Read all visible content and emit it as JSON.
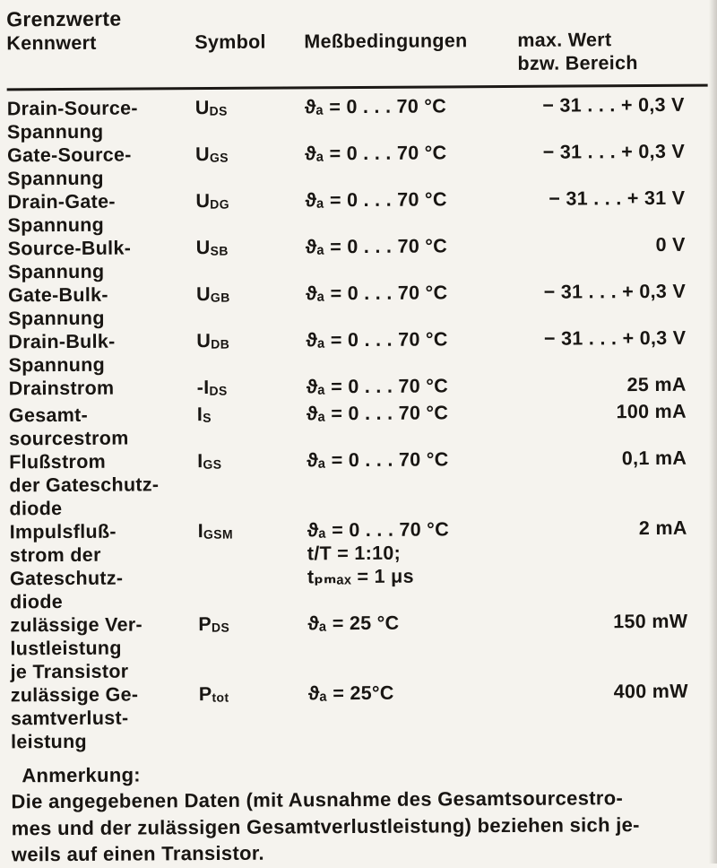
{
  "colors": {
    "paper": "#f5f3ee",
    "ink": "#181512"
  },
  "page": {
    "title": "Grenzwerte",
    "columns": {
      "kennwert": "Kennwert",
      "symbol": "Symbol",
      "bedingungen": "Meßbedingungen",
      "wert_line1": "max. Wert",
      "wert_line2": "bzw. Bereich"
    }
  },
  "rows": [
    {
      "kennwert": [
        "Drain-Source-",
        "Spannung"
      ],
      "sym": {
        "prefix": "",
        "base": "U",
        "sub": "DS"
      },
      "cond": [
        "ϑₐ = 0 . . . 70 °C"
      ],
      "value": "− 31 . . . + 0,3 V"
    },
    {
      "kennwert": [
        "Gate-Source-",
        "Spannung"
      ],
      "sym": {
        "prefix": "",
        "base": "U",
        "sub": "GS"
      },
      "cond": [
        "ϑₐ = 0 . . . 70 °C"
      ],
      "value": "− 31 . . . + 0,3 V"
    },
    {
      "kennwert": [
        "Drain-Gate-",
        "Spannung"
      ],
      "sym": {
        "prefix": "",
        "base": "U",
        "sub": "DG"
      },
      "cond": [
        "ϑₐ = 0 . . . 70 °C"
      ],
      "value": "− 31 . . . + 31 V"
    },
    {
      "kennwert": [
        "Source-Bulk-",
        "Spannung"
      ],
      "sym": {
        "prefix": "",
        "base": "U",
        "sub": "SB"
      },
      "cond": [
        "ϑₐ = 0 . . . 70 °C"
      ],
      "value": "0 V"
    },
    {
      "kennwert": [
        "Gate-Bulk-",
        "Spannung"
      ],
      "sym": {
        "prefix": "",
        "base": "U",
        "sub": "GB"
      },
      "cond": [
        "ϑₐ = 0 . . . 70 °C"
      ],
      "value": "− 31 . . . + 0,3 V"
    },
    {
      "kennwert": [
        "Drain-Bulk-",
        "Spannung"
      ],
      "sym": {
        "prefix": "",
        "base": "U",
        "sub": "DB"
      },
      "cond": [
        "ϑₐ = 0 . . . 70 °C"
      ],
      "value": "− 31 . . . + 0,3 V"
    },
    {
      "kennwert": [
        "Drainstrom"
      ],
      "sym": {
        "prefix": "-",
        "base": "I",
        "sub": "DS"
      },
      "cond": [
        "ϑₐ = 0 . . . 70 °C"
      ],
      "value": "25 mA"
    },
    {
      "kennwert": [
        "Gesamt-",
        "sourcestrom"
      ],
      "sym": {
        "prefix": "",
        "base": "I",
        "sub": "S"
      },
      "cond": [
        "ϑₐ = 0 . . . 70 °C"
      ],
      "value": "100 mA"
    },
    {
      "kennwert": [
        "Flußstrom",
        "der Gateschutz-",
        "diode"
      ],
      "sym": {
        "prefix": "",
        "base": "I",
        "sub": "GS"
      },
      "cond": [
        "ϑₐ = 0 . . . 70 °C"
      ],
      "value": "0,1 mA"
    },
    {
      "kennwert": [
        "Impulsfluß-",
        "strom der",
        "Gateschutz-",
        "diode"
      ],
      "sym": {
        "prefix": "",
        "base": "I",
        "sub": "GSM"
      },
      "cond": [
        "ϑₐ = 0 . . . 70 °C",
        "t/T = 1:10;",
        "tₚₘₐₓ = 1 μs"
      ],
      "value": "2 mA"
    },
    {
      "kennwert": [
        "zulässige Ver-",
        "lustleistung",
        "je Transistor"
      ],
      "sym": {
        "prefix": "",
        "base": "P",
        "sub": "DS"
      },
      "cond": [
        "ϑₐ = 25 °C"
      ],
      "value": "150 mW"
    },
    {
      "kennwert": [
        "zulässige Ge-",
        "samtverlust-",
        "leistung"
      ],
      "sym": {
        "prefix": "",
        "base": "P",
        "sub": "tot"
      },
      "cond": [
        "ϑₐ = 25°C"
      ],
      "value": "400 mW"
    }
  ],
  "note": {
    "heading": "Anmerkung:",
    "lines": [
      "Die angegebenen Daten (mit Ausnahme des Gesamtsourcestro-",
      "mes und der zulässigen Gesamtverlustleistung) beziehen sich je-",
      "weils auf einen Transistor."
    ]
  }
}
